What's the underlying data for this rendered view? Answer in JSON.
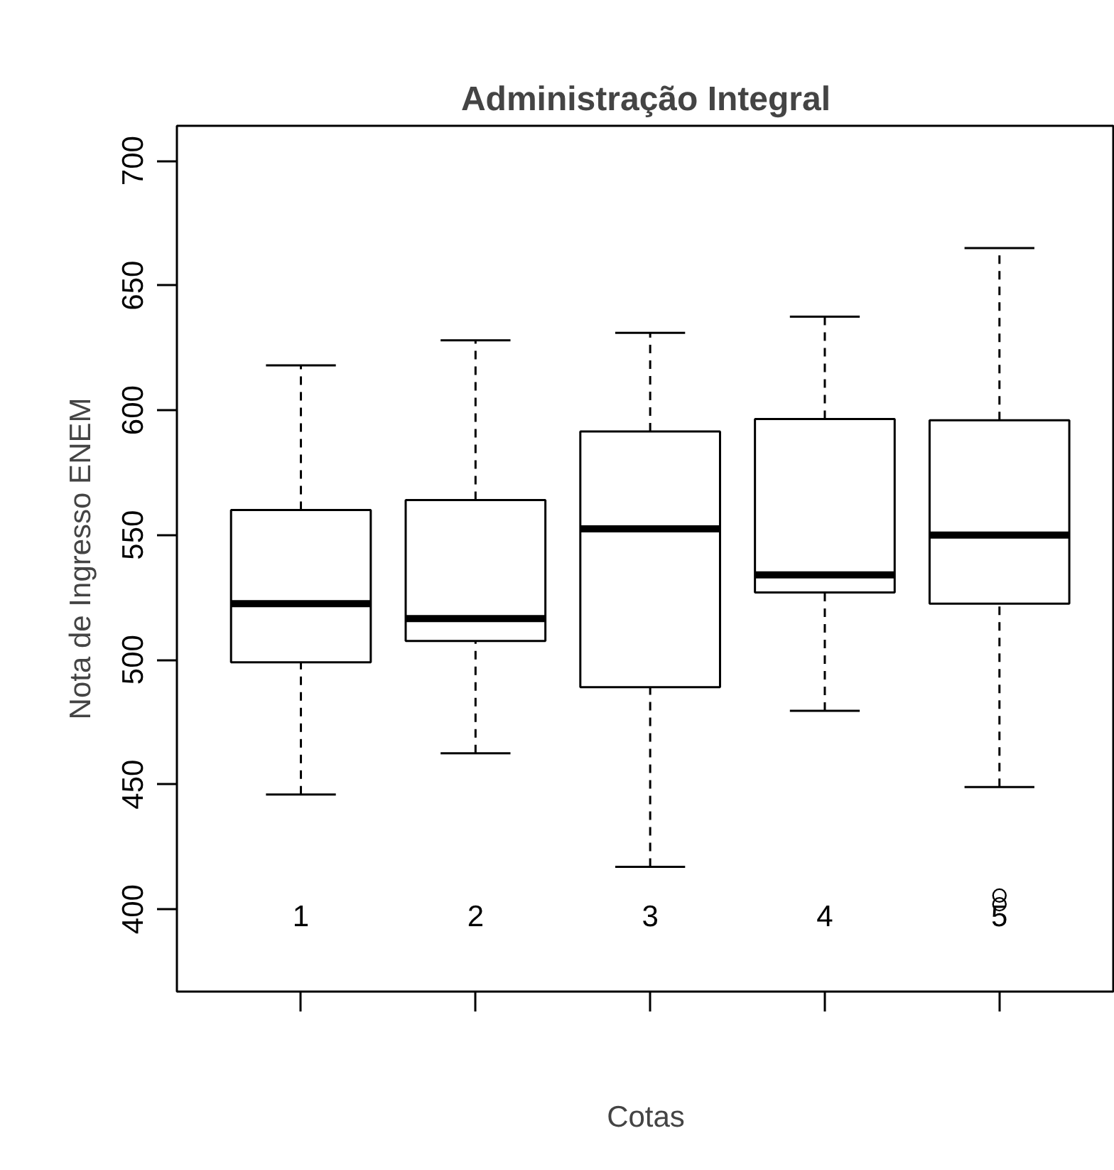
{
  "chart_data": {
    "type": "box",
    "title": "Administração Integral",
    "xlabel": "Cotas",
    "ylabel": "Nota de Ingresso ENEM",
    "categories": [
      "1",
      "2",
      "3",
      "4",
      "5"
    ],
    "boxes": [
      {
        "low": 446,
        "q1": 499,
        "median": 522.5,
        "q3": 560,
        "high": 618
      },
      {
        "low": 462.5,
        "q1": 507.5,
        "median": 516.5,
        "q3": 564,
        "high": 628
      },
      {
        "low": 417,
        "q1": 489,
        "median": 552.5,
        "q3": 591.5,
        "high": 631
      },
      {
        "low": 479.5,
        "q1": 527,
        "median": 534,
        "q3": 596.5,
        "high": 637.5
      },
      {
        "low": 449,
        "q1": 522.5,
        "median": 550,
        "q3": 596,
        "high": 665,
        "outliers": [
          405.5,
          402
        ]
      }
    ],
    "color": "#ffffff",
    "ylim": [
      367,
      714
    ],
    "yticks": [
      400,
      450,
      500,
      550,
      600,
      650,
      700
    ],
    "grid": false
  }
}
